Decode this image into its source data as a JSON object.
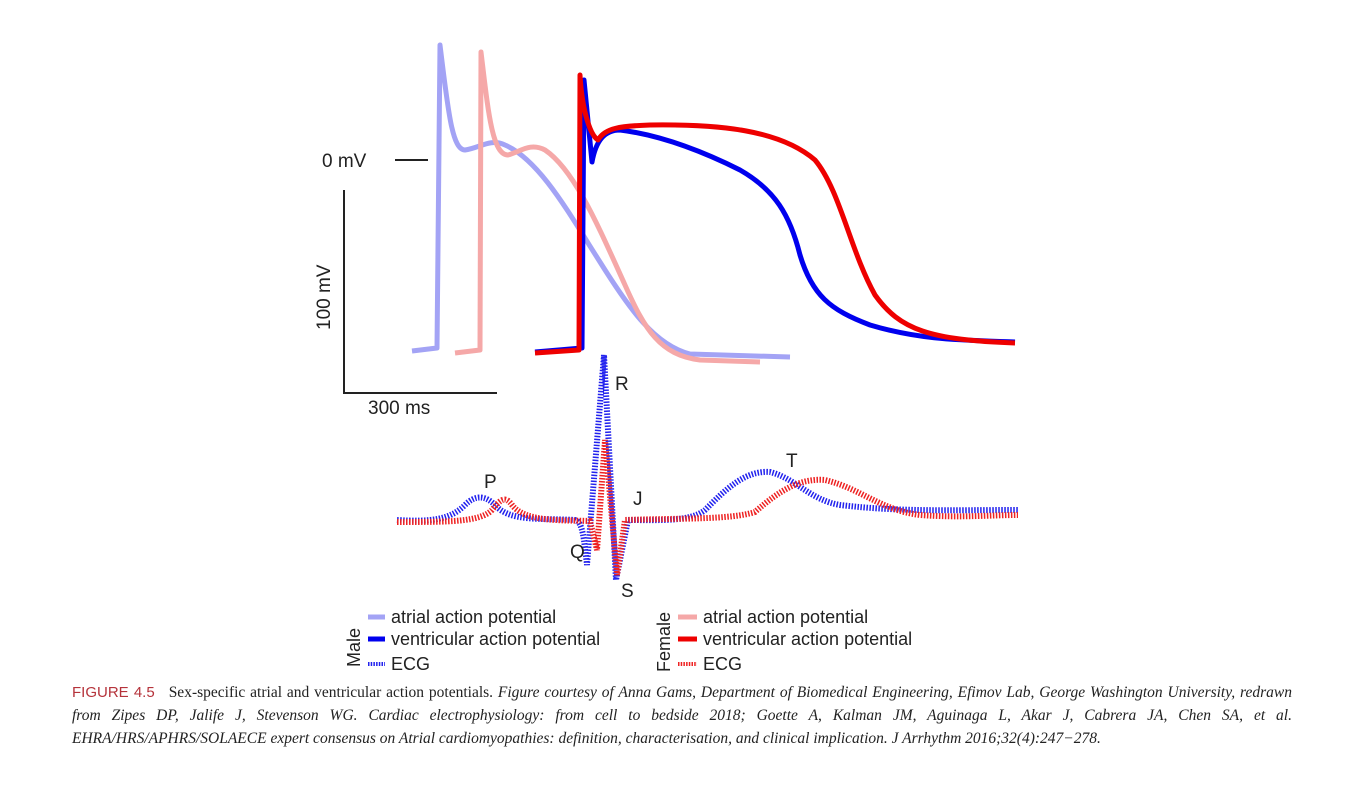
{
  "figure": {
    "scale": {
      "voltage_zero": "0 mV",
      "voltage_bar": "100 mV",
      "time_bar": "300 ms"
    },
    "ecg_labels": {
      "p": "P",
      "q": "Q",
      "r": "R",
      "s": "S",
      "j": "J",
      "t": "T"
    },
    "legend": {
      "male": {
        "title": "Male",
        "atrial": "atrial action potential",
        "ventricular": "ventricular action potential",
        "ecg": "ECG"
      },
      "female": {
        "title": "Female",
        "atrial": "atrial action potential",
        "ventricular": "ventricular action potential",
        "ecg": "ECG"
      }
    },
    "colors": {
      "male_atrial": "#a3a3f5",
      "male_ventricular": "#0000ee",
      "female_atrial": "#f5a8a8",
      "female_ventricular": "#ee0000",
      "figure_label": "#b5333b"
    }
  },
  "caption": {
    "label": "FIGURE 4.5",
    "text": "Sex-specific atrial and ventricular action potentials.",
    "credit": "Figure courtesy of Anna Gams, Department of Biomedical Engineering, Efimov Lab, George Washington University, redrawn from Zipes DP, Jalife J, Stevenson WG. Cardiac electrophysiology: from cell to bedside 2018; Goette A, Kalman JM, Aguinaga L, Akar J, Cabrera JA, Chen SA, et al. EHRA/HRS/APHRS/SOLAECE expert consensus on Atrial cardiomyopathies: definition, characterisation, and clinical implication. J Arrhythm 2016;32(4):247−278."
  }
}
